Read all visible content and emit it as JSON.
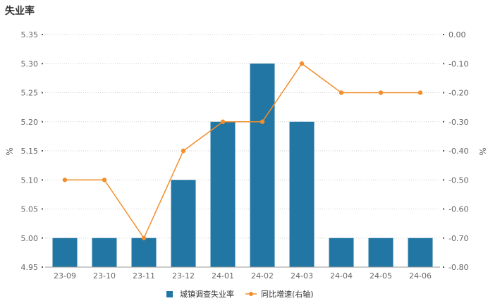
{
  "chart_data": {
    "type": "bar",
    "title": "失业率",
    "categories": [
      "23-09",
      "23-10",
      "23-11",
      "23-12",
      "24-01",
      "24-02",
      "24-03",
      "24-04",
      "24-05",
      "24-06"
    ],
    "series": [
      {
        "name": "城镇调查失业率",
        "type": "bar",
        "axis": "left",
        "values": [
          5.0,
          5.0,
          5.0,
          5.1,
          5.2,
          5.3,
          5.2,
          5.0,
          5.0,
          5.0
        ],
        "color": "#2176a3"
      },
      {
        "name": "同比增速(右轴)",
        "type": "line",
        "axis": "right",
        "values": [
          -0.5,
          -0.5,
          -0.7,
          -0.4,
          -0.3,
          -0.3,
          -0.1,
          -0.2,
          -0.2,
          -0.2
        ],
        "color": "#f28e2b"
      }
    ],
    "ylabel": "%",
    "ylabel_right": "%",
    "ylim": [
      4.95,
      5.35
    ],
    "ylim_right": [
      -0.8,
      0.0
    ],
    "yticks": [
      "5.35",
      "5.30",
      "5.25",
      "5.20",
      "5.15",
      "5.10",
      "5.05",
      "5.00",
      "4.95"
    ],
    "yticks_right": [
      "0.00",
      "-0.10",
      "-0.20",
      "-0.30",
      "-0.40",
      "-0.50",
      "-0.60",
      "-0.70",
      "-0.80"
    ],
    "grid": true,
    "legend_position": "bottom"
  }
}
